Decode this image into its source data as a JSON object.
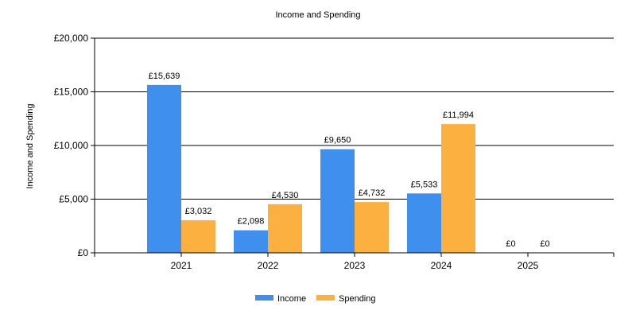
{
  "chart_data": {
    "type": "bar",
    "title": "Income and Spending",
    "xlabel": "",
    "ylabel": "Income and Spending",
    "categories": [
      "2021",
      "2022",
      "2023",
      "2024",
      "2025"
    ],
    "series": [
      {
        "name": "Income",
        "color": "#3f8fef",
        "values": [
          15639,
          2098,
          9650,
          5533,
          0
        ],
        "labels": [
          "£15,639",
          "£2,098",
          "£9,650",
          "£5,533",
          "£0"
        ]
      },
      {
        "name": "Spending",
        "color": "#fbb040",
        "values": [
          3032,
          4530,
          4732,
          11994,
          0
        ],
        "labels": [
          "£3,032",
          "£4,530",
          "£4,732",
          "£11,994",
          "£0"
        ]
      }
    ],
    "ylim": [
      0,
      20000
    ],
    "yticks": [
      0,
      5000,
      10000,
      15000,
      20000
    ],
    "ytick_labels": [
      "£0",
      "£5,000",
      "£10,000",
      "£15,000",
      "£20,000"
    ],
    "grid": true,
    "legend_position": "bottom-center"
  }
}
